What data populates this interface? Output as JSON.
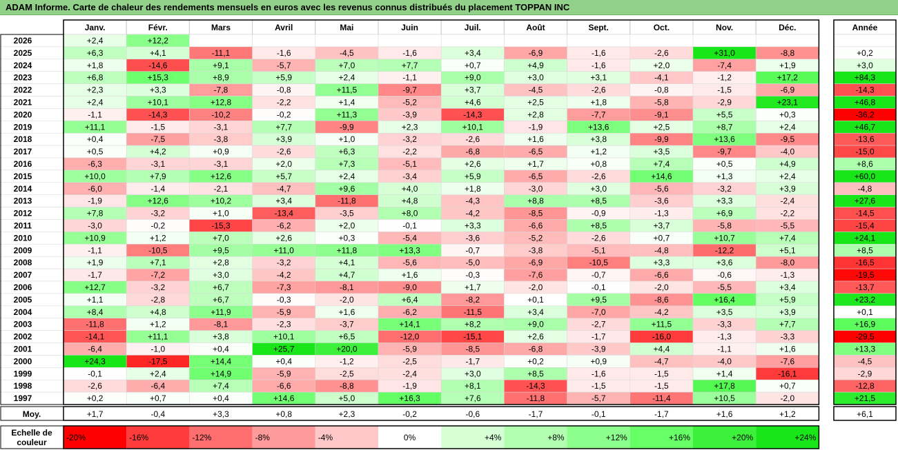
{
  "title": "ADAM Informe. Carte de chaleur des rendements mensuels en euros avec les revenus connus distribués du placement TOPPAN INC",
  "chart_data": {
    "type": "heatmap",
    "months": [
      "Janv.",
      "Févr.",
      "Mars",
      "Avril",
      "Mai",
      "Juin",
      "Juil.",
      "Août",
      "Sept.",
      "Oct.",
      "Nov.",
      "Déc."
    ],
    "year_header": "Année",
    "rows": [
      {
        "year": "2026",
        "values": [
          2.4,
          12.2,
          null,
          null,
          null,
          null,
          null,
          null,
          null,
          null,
          null,
          null
        ],
        "annual": null
      },
      {
        "year": "2025",
        "values": [
          6.3,
          4.1,
          -11.1,
          -1.6,
          -4.5,
          -1.6,
          3.4,
          -6.9,
          -1.6,
          -2.6,
          31.0,
          -8.8
        ],
        "annual": 0.2
      },
      {
        "year": "2024",
        "values": [
          1.8,
          -14.6,
          9.1,
          -5.7,
          7.0,
          7.7,
          0.7,
          4.9,
          -1.6,
          2.0,
          -7.4,
          1.9
        ],
        "annual": 3.0
      },
      {
        "year": "2023",
        "values": [
          6.8,
          15.3,
          8.9,
          5.9,
          2.4,
          -1.1,
          9.0,
          3.0,
          3.1,
          -4.1,
          -1.2,
          17.2
        ],
        "annual": 84.3
      },
      {
        "year": "2022",
        "values": [
          2.3,
          3.3,
          -7.8,
          -0.8,
          11.5,
          -9.7,
          3.7,
          -4.5,
          -2.6,
          -0.8,
          -1.5,
          -6.9
        ],
        "annual": -14.3
      },
      {
        "year": "2021",
        "values": [
          2.4,
          10.1,
          12.8,
          -2.2,
          1.4,
          -5.2,
          4.6,
          2.5,
          1.8,
          -5.8,
          -2.9,
          23.1
        ],
        "annual": 46.8
      },
      {
        "year": "2020",
        "values": [
          -1.1,
          -14.3,
          -10.2,
          -0.2,
          11.3,
          -3.9,
          -14.3,
          2.8,
          -7.7,
          -9.1,
          5.5,
          0.3
        ],
        "annual": -36.2
      },
      {
        "year": "2019",
        "values": [
          11.1,
          -1.5,
          -3.1,
          7.7,
          -9.9,
          2.3,
          10.1,
          -1.9,
          13.6,
          2.5,
          8.7,
          2.4
        ],
        "annual": 46.7
      },
      {
        "year": "2018",
        "values": [
          0.4,
          -7.5,
          -3.8,
          3.9,
          1.0,
          -3.2,
          -2.6,
          1.6,
          3.8,
          -9.9,
          13.6,
          -9.5
        ],
        "annual": -13.6
      },
      {
        "year": "2017",
        "values": [
          0.5,
          4.2,
          0.9,
          -2.6,
          6.3,
          -2.2,
          -6.8,
          -6.5,
          1.2,
          3.5,
          -9.7,
          -4.0
        ],
        "annual": -15.0
      },
      {
        "year": "2016",
        "values": [
          -6.3,
          -3.1,
          -3.1,
          2.0,
          7.3,
          -5.1,
          2.6,
          1.7,
          0.8,
          7.4,
          0.5,
          4.9
        ],
        "annual": 8.6
      },
      {
        "year": "2015",
        "values": [
          10.0,
          7.9,
          12.6,
          5.7,
          2.4,
          -3.4,
          5.9,
          -6.5,
          -2.6,
          14.6,
          1.3,
          2.4
        ],
        "annual": 60.0
      },
      {
        "year": "2014",
        "values": [
          -6.0,
          -1.4,
          -2.1,
          -4.7,
          9.6,
          4.0,
          1.8,
          -3.0,
          3.0,
          -5.6,
          -3.2,
          3.9
        ],
        "annual": -4.8
      },
      {
        "year": "2013",
        "values": [
          -1.9,
          12.6,
          10.2,
          3.4,
          -11.8,
          4.8,
          -4.3,
          8.8,
          8.5,
          -3.6,
          3.3,
          -2.4
        ],
        "annual": 27.6
      },
      {
        "year": "2012",
        "values": [
          7.8,
          -3.2,
          1.0,
          -13.4,
          -3.5,
          8.0,
          -4.2,
          -8.5,
          -0.9,
          -1.3,
          6.9,
          -2.2
        ],
        "annual": -14.5
      },
      {
        "year": "2011",
        "values": [
          -3.0,
          -0.2,
          -15.3,
          -6.2,
          2.0,
          -0.1,
          3.3,
          -6.6,
          8.5,
          3.7,
          -5.8,
          -5.5
        ],
        "annual": -15.4
      },
      {
        "year": "2010",
        "values": [
          10.9,
          1.2,
          7.0,
          2.6,
          0.3,
          -5.4,
          -3.6,
          -5.2,
          -2.6,
          0.7,
          10.7,
          7.4
        ],
        "annual": 24.1
      },
      {
        "year": "2009",
        "values": [
          -1.1,
          -10.5,
          9.5,
          11.0,
          11.8,
          13.3,
          -0.7,
          -3.8,
          -5.1,
          -4.8,
          -12.2,
          5.1
        ],
        "annual": 8.5
      },
      {
        "year": "2008",
        "values": [
          1.9,
          7.1,
          2.8,
          -3.2,
          4.1,
          -5.6,
          -5.0,
          -6.9,
          -10.5,
          3.3,
          3.6,
          -8.0
        ],
        "annual": -16.5
      },
      {
        "year": "2007",
        "values": [
          -1.7,
          -7.2,
          3.0,
          -4.2,
          4.7,
          1.6,
          -0.3,
          -7.6,
          -0.7,
          -6.6,
          -0.6,
          -1.3
        ],
        "annual": -19.5
      },
      {
        "year": "2006",
        "values": [
          12.7,
          -3.2,
          6.7,
          -7.3,
          -8.1,
          -9.0,
          1.7,
          -2.0,
          -0.1,
          -2.0,
          -5.5,
          3.4
        ],
        "annual": -13.7
      },
      {
        "year": "2005",
        "values": [
          1.1,
          -2.8,
          6.7,
          -0.3,
          -2.0,
          6.4,
          -8.2,
          0.1,
          9.5,
          -8.6,
          16.4,
          5.9
        ],
        "annual": 23.2
      },
      {
        "year": "2004",
        "values": [
          8.4,
          4.8,
          11.9,
          -5.9,
          1.6,
          -6.2,
          -11.5,
          3.4,
          -7.0,
          -4.2,
          3.5,
          3.9
        ],
        "annual": 0.1
      },
      {
        "year": "2003",
        "values": [
          -11.8,
          1.2,
          -8.1,
          -2.3,
          -3.7,
          14.1,
          8.2,
          9.0,
          -2.7,
          11.5,
          -3.3,
          7.7
        ],
        "annual": 16.9
      },
      {
        "year": "2002",
        "values": [
          -14.1,
          11.1,
          3.8,
          10.1,
          6.5,
          -12.0,
          -15.1,
          2.6,
          -1.7,
          -16.0,
          -1.3,
          -3.3
        ],
        "annual": -29.5
      },
      {
        "year": "2001",
        "values": [
          -6.4,
          -1.0,
          0.4,
          25.7,
          20.0,
          -5.9,
          -8.5,
          -6.8,
          -3.9,
          4.4,
          -1.1,
          1.6
        ],
        "annual": 13.3
      },
      {
        "year": "2000",
        "values": [
          24.3,
          -17.5,
          14.4,
          0.4,
          -1.2,
          -2.5,
          -1.7,
          0.2,
          0.9,
          -4.7,
          -4.0,
          -7.6
        ],
        "annual": -4.5
      },
      {
        "year": "1999",
        "values": [
          -0.1,
          2.4,
          14.9,
          -5.9,
          -2.5,
          -2.4,
          3.0,
          8.5,
          -1.6,
          -1.5,
          1.4,
          -16.1
        ],
        "annual": -2.9
      },
      {
        "year": "1998",
        "values": [
          -2.6,
          -6.4,
          7.4,
          -6.6,
          -8.8,
          -1.9,
          8.1,
          -14.3,
          -1.5,
          -1.5,
          17.8,
          0.7
        ],
        "annual": -12.8
      },
      {
        "year": "1997",
        "values": [
          0.2,
          0.7,
          0.4,
          14.6,
          5.0,
          16.3,
          7.6,
          -11.8,
          -5.7,
          -11.4,
          10.5,
          -2.0
        ],
        "annual": 21.5
      }
    ],
    "average": {
      "label": "Moy.",
      "values": [
        1.7,
        -0.4,
        3.3,
        0.8,
        2.3,
        -0.2,
        -0.6,
        -1.7,
        -0.1,
        -1.7,
        1.6,
        1.2
      ],
      "annual": 6.1
    },
    "color_scale": {
      "label_line1": "Echelle de",
      "label_line2": "couleur",
      "stops": [
        {
          "label": "-20%",
          "value": -20,
          "color": "#ff0000"
        },
        {
          "label": "-16%",
          "value": -16,
          "color": "#ff3c3c"
        },
        {
          "label": "-12%",
          "value": -12,
          "color": "#ff6e6e"
        },
        {
          "label": "-8%",
          "value": -8,
          "color": "#ff9a9a"
        },
        {
          "label": "-4%",
          "value": -4,
          "color": "#ffc8c8"
        },
        {
          "label": "0%",
          "value": 0,
          "color": "#ffffff"
        },
        {
          "label": "+4%",
          "value": 4,
          "color": "#d6ffd6"
        },
        {
          "label": "+8%",
          "value": 8,
          "color": "#b2ffb2"
        },
        {
          "label": "+12%",
          "value": 12,
          "color": "#8cff8c"
        },
        {
          "label": "+16%",
          "value": 16,
          "color": "#66ff66"
        },
        {
          "label": "+20%",
          "value": 20,
          "color": "#3cf03c"
        },
        {
          "label": "+24%",
          "value": 24,
          "color": "#19e619"
        }
      ]
    }
  }
}
